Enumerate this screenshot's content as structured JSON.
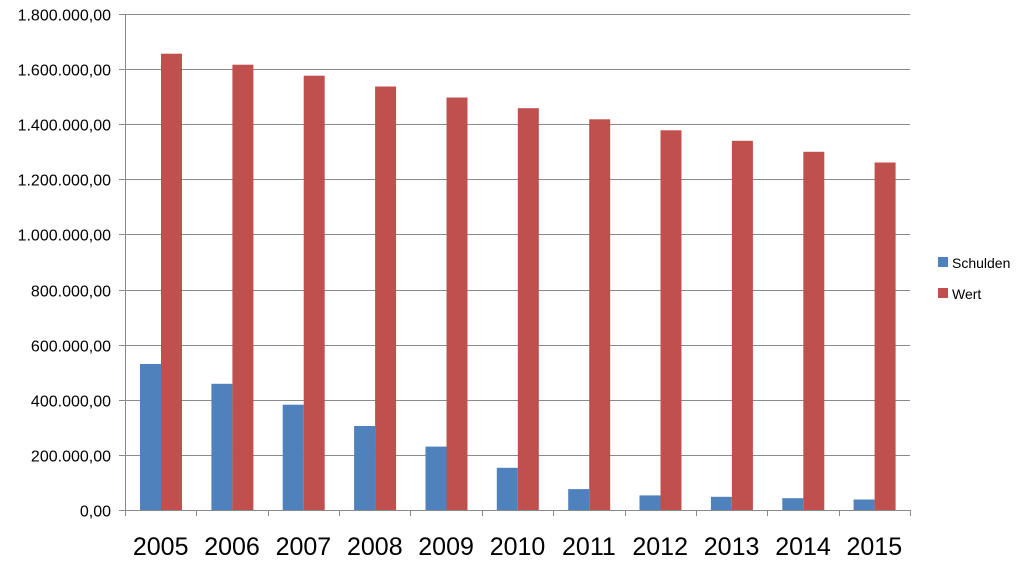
{
  "chart_data": {
    "type": "bar",
    "title": "",
    "xlabel": "",
    "ylabel": "",
    "categories": [
      "2005",
      "2006",
      "2007",
      "2008",
      "2009",
      "2010",
      "2011",
      "2012",
      "2013",
      "2014",
      "2015"
    ],
    "series": [
      {
        "name": "Schulden",
        "color": "#4f81bd",
        "values": [
          530000,
          458000,
          382000,
          305000,
          230000,
          153000,
          76000,
          53000,
          48000,
          43000,
          38000
        ]
      },
      {
        "name": "Wert",
        "color": "#c0504d",
        "values": [
          1656000,
          1616000,
          1576000,
          1537000,
          1497000,
          1458000,
          1418000,
          1378000,
          1340000,
          1300000,
          1261000
        ]
      }
    ],
    "ylim": [
      0,
      1800000
    ],
    "y_ticks": [
      "0,00",
      "200.000,00",
      "400.000,00",
      "600.000,00",
      "800.000,00",
      "1.000.000,00",
      "1.200.000,00",
      "1.400.000,00",
      "1.600.000,00",
      "1.800.000,00"
    ],
    "grid": true,
    "legend_position": "right"
  }
}
